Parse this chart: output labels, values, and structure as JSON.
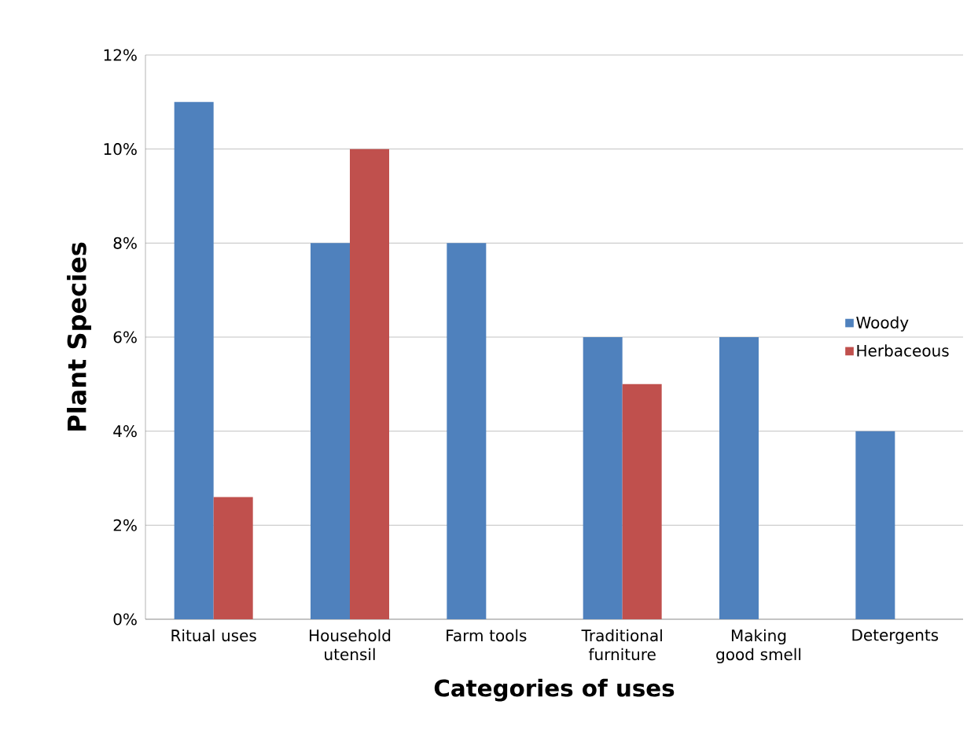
{
  "chart_data": {
    "type": "bar",
    "xlabel": "Categories of uses",
    "ylabel": "Plant Species",
    "categories": [
      "Ritual uses",
      "Household utensil",
      "Farm tools",
      "Traditional furniture",
      "Making good smell",
      "Detergents"
    ],
    "series": [
      {
        "name": "Woody",
        "color": "#4f81bd",
        "values": [
          11,
          8,
          8,
          6,
          6,
          4
        ]
      },
      {
        "name": "Herbaceous",
        "color": "#c0504d",
        "values": [
          2.6,
          10,
          null,
          5,
          null,
          null
        ]
      }
    ],
    "ylim": [
      0,
      12
    ],
    "yticks": [
      {
        "value": 0,
        "label": "0%"
      },
      {
        "value": 2,
        "label": "2%"
      },
      {
        "value": 4,
        "label": "4%"
      },
      {
        "value": 6,
        "label": "6%"
      },
      {
        "value": 8,
        "label": "8%"
      },
      {
        "value": 10,
        "label": "10%"
      },
      {
        "value": 12,
        "label": "12%"
      }
    ],
    "grid": "y",
    "legend": "right"
  }
}
